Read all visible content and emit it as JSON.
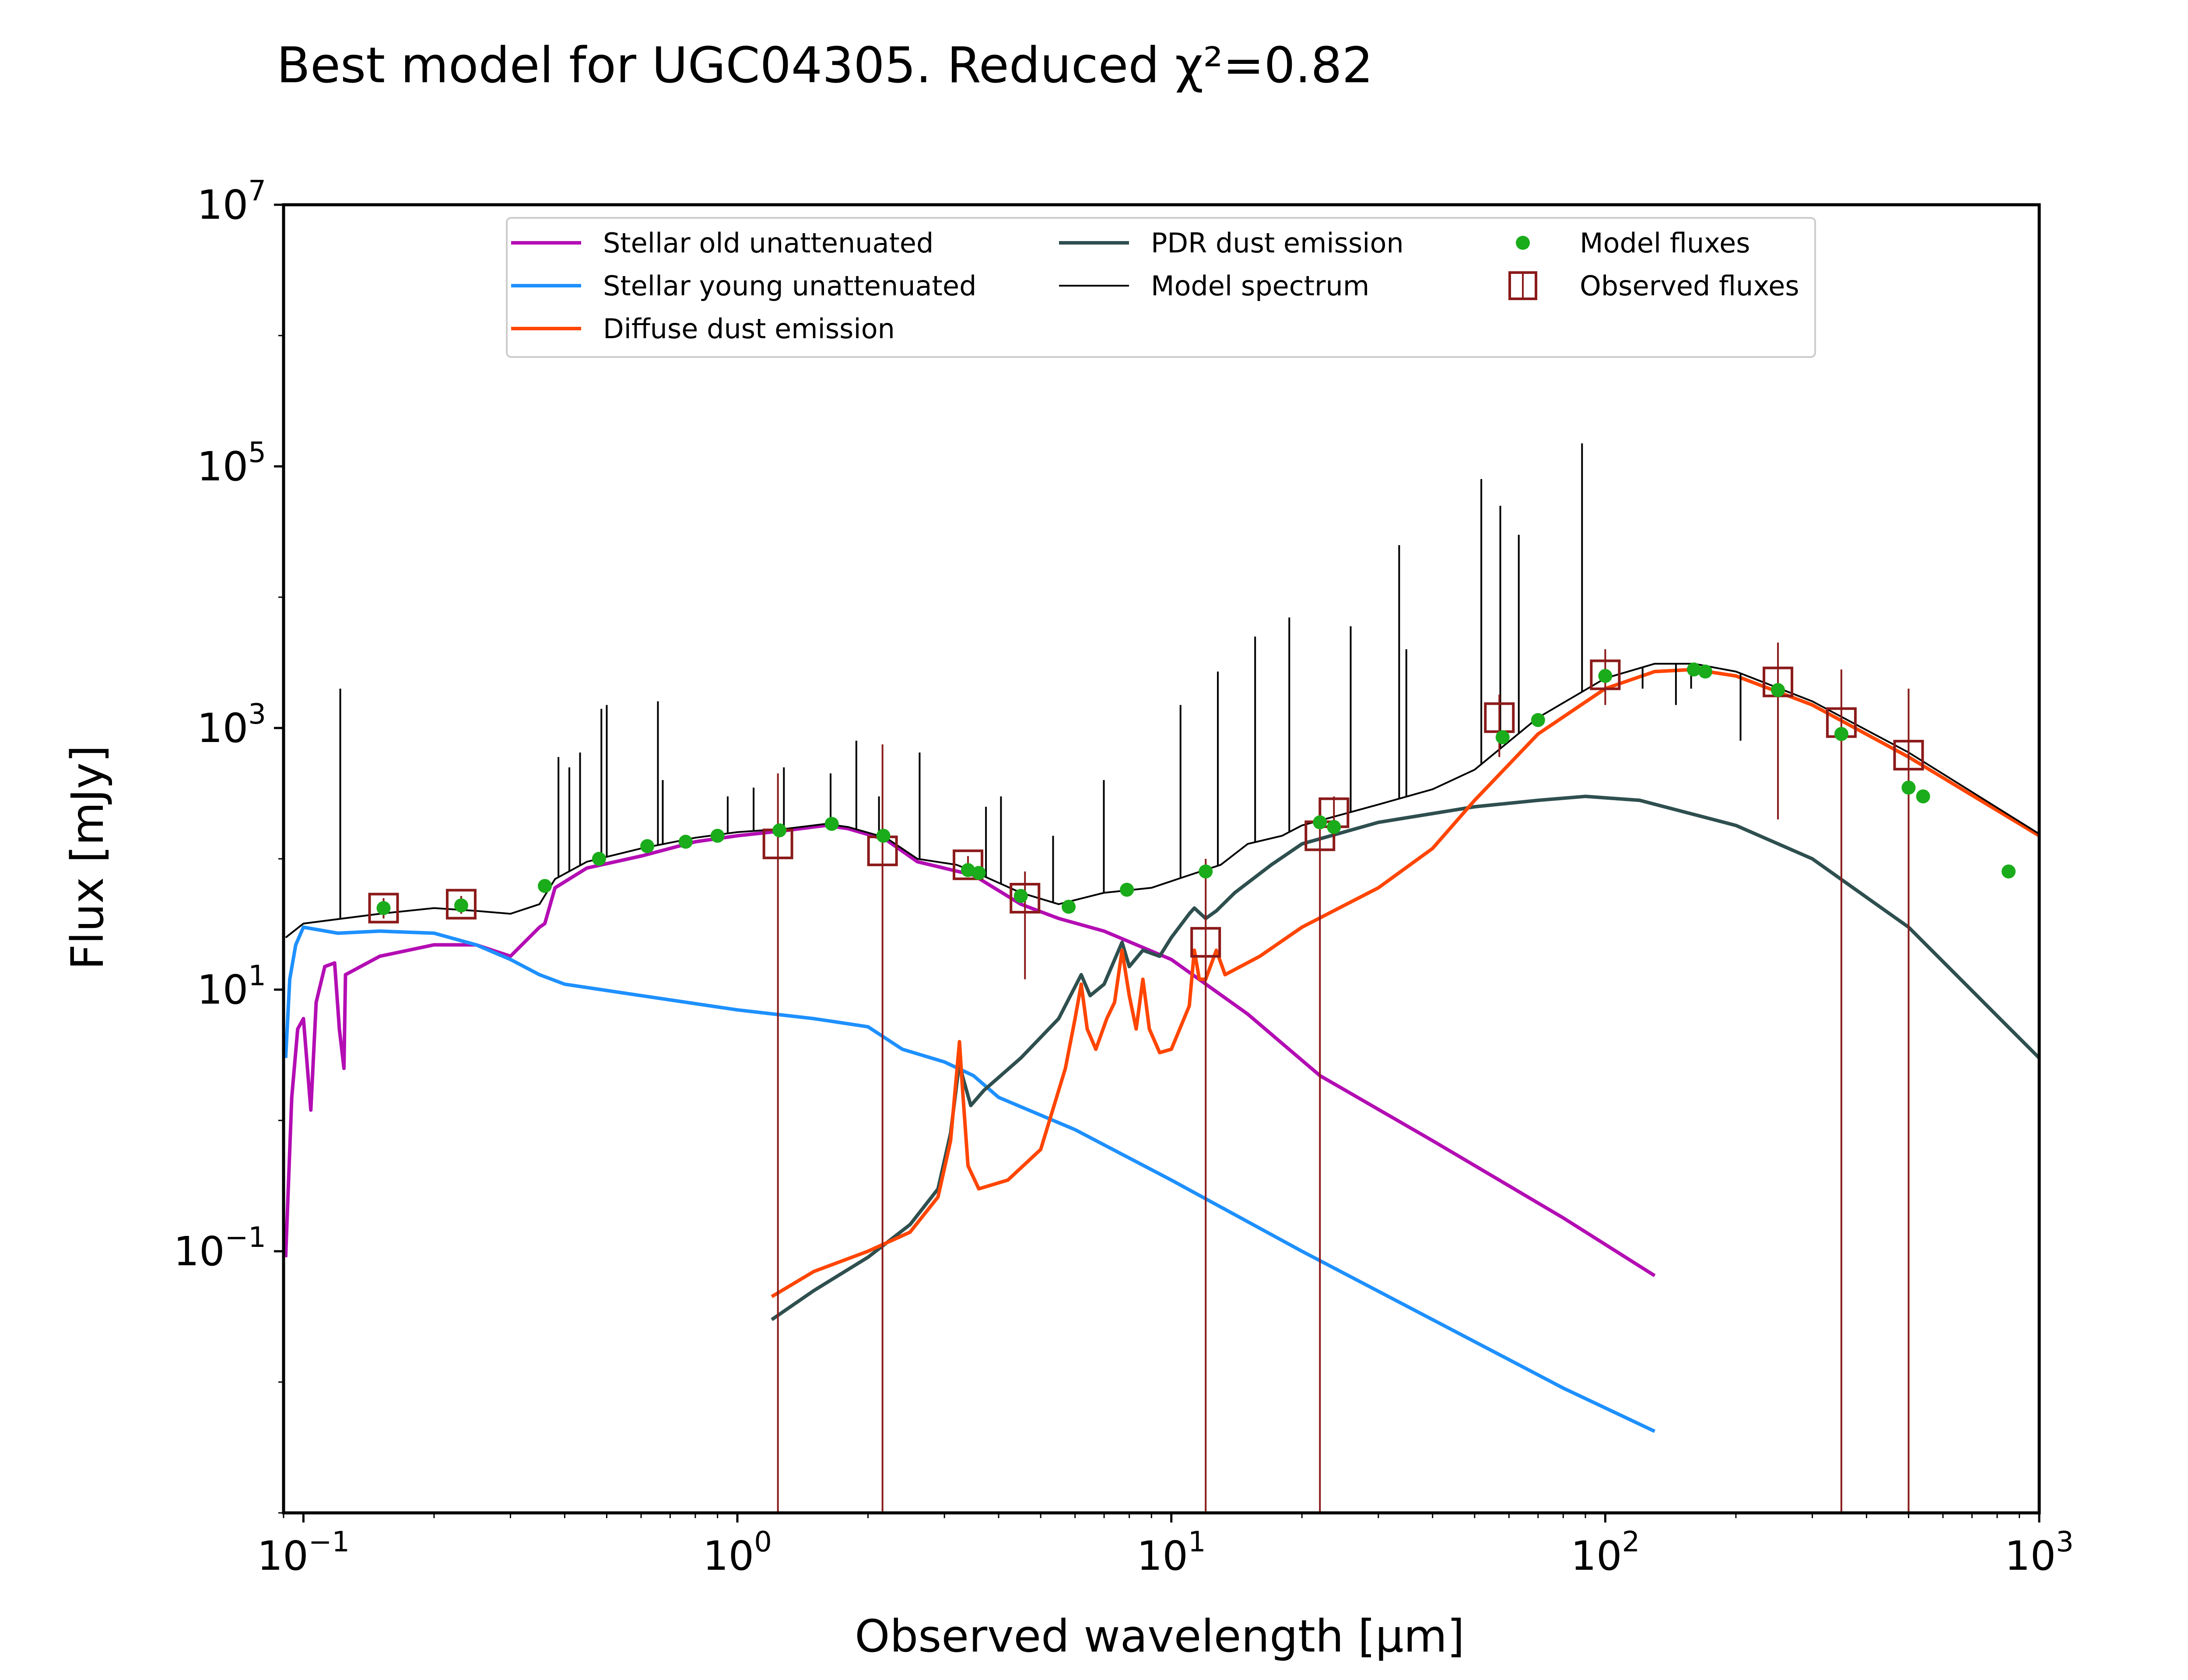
{
  "chart_data": {
    "type": "line",
    "title": "Best model for UGC04305. Reduced χ²=0.82",
    "xlabel": "Observed wavelength [μm]",
    "ylabel": "Flux [mJy]",
    "x_scale": "log",
    "y_scale": "log",
    "xlim": [
      0.09,
      1000
    ],
    "ylim": [
      0.001,
      10000000
    ],
    "grid": false,
    "legend_position": "top-center",
    "x_ticks": [
      {
        "value": 0.1,
        "base": "10",
        "exp": "−1"
      },
      {
        "value": 1,
        "base": "10",
        "exp": "0"
      },
      {
        "value": 10,
        "base": "10",
        "exp": "1"
      },
      {
        "value": 100,
        "base": "10",
        "exp": "2"
      },
      {
        "value": 1000,
        "base": "10",
        "exp": "3"
      }
    ],
    "y_ticks": [
      {
        "value": 0.1,
        "base": "10",
        "exp": "−1"
      },
      {
        "value": 10,
        "base": "10",
        "exp": "1"
      },
      {
        "value": 1000,
        "base": "10",
        "exp": "3"
      },
      {
        "value": 100000,
        "base": "10",
        "exp": "5"
      },
      {
        "value": 10000000,
        "base": "10",
        "exp": "7"
      }
    ],
    "series": [
      {
        "name": "Stellar old unattenuated",
        "color": "#b30db3",
        "points": [
          [
            0.091,
            0.09
          ],
          [
            0.094,
            1.5
          ],
          [
            0.097,
            5
          ],
          [
            0.1,
            6
          ],
          [
            0.104,
            1.2
          ],
          [
            0.107,
            8
          ],
          [
            0.112,
            15
          ],
          [
            0.118,
            16
          ],
          [
            0.121,
            5
          ],
          [
            0.124,
            2.5
          ],
          [
            0.125,
            13
          ],
          [
            0.15,
            18
          ],
          [
            0.2,
            22
          ],
          [
            0.25,
            22
          ],
          [
            0.3,
            18
          ],
          [
            0.35,
            30
          ],
          [
            0.36,
            32
          ],
          [
            0.38,
            60
          ],
          [
            0.45,
            85
          ],
          [
            0.6,
            105
          ],
          [
            0.8,
            135
          ],
          [
            1.0,
            150
          ],
          [
            1.3,
            165
          ],
          [
            1.6,
            180
          ],
          [
            1.8,
            170
          ],
          [
            2.2,
            140
          ],
          [
            2.6,
            95
          ],
          [
            3.5,
            75
          ],
          [
            4.5,
            45
          ],
          [
            5.5,
            35
          ],
          [
            7,
            28
          ],
          [
            10,
            17
          ],
          [
            15,
            6.5
          ],
          [
            22,
            2.2
          ],
          [
            40,
            0.7
          ],
          [
            80,
            0.18
          ],
          [
            130,
            0.065
          ]
        ]
      },
      {
        "name": "Stellar young unattenuated",
        "color": "#1e90ff",
        "points": [
          [
            0.091,
            3
          ],
          [
            0.093,
            12
          ],
          [
            0.096,
            22
          ],
          [
            0.1,
            30
          ],
          [
            0.12,
            27
          ],
          [
            0.15,
            28
          ],
          [
            0.2,
            27
          ],
          [
            0.25,
            22
          ],
          [
            0.3,
            17
          ],
          [
            0.35,
            13
          ],
          [
            0.4,
            11
          ],
          [
            0.6,
            9
          ],
          [
            1.0,
            7
          ],
          [
            1.5,
            6
          ],
          [
            2.0,
            5.2
          ],
          [
            2.4,
            3.5
          ],
          [
            3.0,
            2.8
          ],
          [
            3.5,
            2.2
          ],
          [
            4,
            1.5
          ],
          [
            6,
            0.85
          ],
          [
            10,
            0.35
          ],
          [
            20,
            0.1
          ],
          [
            40,
            0.03
          ],
          [
            80,
            0.009
          ],
          [
            130,
            0.0042
          ]
        ]
      },
      {
        "name": "Diffuse dust emission",
        "color": "#ff4500",
        "points": [
          [
            1.2,
            0.045
          ],
          [
            1.5,
            0.07
          ],
          [
            2,
            0.1
          ],
          [
            2.5,
            0.14
          ],
          [
            2.9,
            0.26
          ],
          [
            3.1,
            0.7
          ],
          [
            3.25,
            4
          ],
          [
            3.3,
            1.8
          ],
          [
            3.4,
            0.45
          ],
          [
            3.6,
            0.3
          ],
          [
            4.2,
            0.35
          ],
          [
            5.0,
            0.6
          ],
          [
            5.7,
            2.5
          ],
          [
            6.0,
            6
          ],
          [
            6.2,
            11
          ],
          [
            6.4,
            5
          ],
          [
            6.7,
            3.5
          ],
          [
            7.1,
            6
          ],
          [
            7.4,
            8
          ],
          [
            7.7,
            20
          ],
          [
            8.0,
            9
          ],
          [
            8.3,
            5
          ],
          [
            8.6,
            12
          ],
          [
            8.9,
            5
          ],
          [
            9.4,
            3.3
          ],
          [
            10,
            3.5
          ],
          [
            11,
            7.5
          ],
          [
            11.3,
            20
          ],
          [
            11.6,
            12
          ],
          [
            12,
            12
          ],
          [
            12.7,
            20
          ],
          [
            13.3,
            13
          ],
          [
            16,
            18
          ],
          [
            20,
            30
          ],
          [
            30,
            60
          ],
          [
            40,
            120
          ],
          [
            50,
            280
          ],
          [
            70,
            900
          ],
          [
            100,
            2000
          ],
          [
            130,
            2700
          ],
          [
            160,
            2800
          ],
          [
            200,
            2500
          ],
          [
            300,
            1500
          ],
          [
            500,
            600
          ],
          [
            1000,
            150
          ]
        ]
      },
      {
        "name": "PDR dust emission",
        "color": "#2f4f4f",
        "points": [
          [
            1.2,
            0.03
          ],
          [
            1.5,
            0.05
          ],
          [
            2,
            0.09
          ],
          [
            2.5,
            0.16
          ],
          [
            2.9,
            0.3
          ],
          [
            3.1,
            0.8
          ],
          [
            3.25,
            2.8
          ],
          [
            3.3,
            2.2
          ],
          [
            3.45,
            1.3
          ],
          [
            3.7,
            1.7
          ],
          [
            4.5,
            3
          ],
          [
            5.5,
            6
          ],
          [
            6.2,
            13
          ],
          [
            6.5,
            9
          ],
          [
            7.0,
            11
          ],
          [
            7.7,
            23
          ],
          [
            8.0,
            15
          ],
          [
            8.6,
            20
          ],
          [
            9.4,
            18
          ],
          [
            10,
            25
          ],
          [
            11,
            38
          ],
          [
            11.3,
            42
          ],
          [
            12,
            35
          ],
          [
            12.7,
            40
          ],
          [
            14,
            55
          ],
          [
            17,
            90
          ],
          [
            20,
            130
          ],
          [
            30,
            190
          ],
          [
            50,
            250
          ],
          [
            70,
            280
          ],
          [
            90,
            300
          ],
          [
            120,
            280
          ],
          [
            200,
            180
          ],
          [
            300,
            100
          ],
          [
            500,
            30
          ],
          [
            1000,
            3
          ]
        ]
      },
      {
        "name": "Model spectrum",
        "color": "#000000",
        "points": [
          [
            0.091,
            25
          ],
          [
            0.1,
            32
          ],
          [
            0.15,
            38
          ],
          [
            0.2,
            42
          ],
          [
            0.25,
            40
          ],
          [
            0.3,
            38
          ],
          [
            0.35,
            45
          ],
          [
            0.38,
            70
          ],
          [
            0.45,
            95
          ],
          [
            0.6,
            120
          ],
          [
            0.8,
            145
          ],
          [
            1.0,
            160
          ],
          [
            1.3,
            170
          ],
          [
            1.6,
            185
          ],
          [
            1.8,
            175
          ],
          [
            2.2,
            145
          ],
          [
            2.6,
            100
          ],
          [
            3.2,
            90
          ],
          [
            3.5,
            80
          ],
          [
            4.5,
            55
          ],
          [
            5.5,
            45
          ],
          [
            7,
            55
          ],
          [
            9,
            60
          ],
          [
            11,
            75
          ],
          [
            13,
            90
          ],
          [
            15,
            130
          ],
          [
            18,
            150
          ],
          [
            20,
            180
          ],
          [
            30,
            260
          ],
          [
            40,
            340
          ],
          [
            50,
            480
          ],
          [
            70,
            1200
          ],
          [
            100,
            2400
          ],
          [
            130,
            3100
          ],
          [
            160,
            3100
          ],
          [
            200,
            2700
          ],
          [
            300,
            1600
          ],
          [
            500,
            650
          ],
          [
            1000,
            155
          ]
        ]
      }
    ],
    "spectrum_lines": [
      [
        0.1216,
        2000
      ],
      [
        0.387,
        600
      ],
      [
        0.41,
        500
      ],
      [
        0.434,
        650
      ],
      [
        0.486,
        1400
      ],
      [
        0.5,
        1500
      ],
      [
        0.656,
        1600
      ],
      [
        0.673,
        400
      ],
      [
        0.95,
        300
      ],
      [
        1.09,
        350
      ],
      [
        1.28,
        500
      ],
      [
        1.64,
        450
      ],
      [
        1.88,
        800
      ],
      [
        2.12,
        300
      ],
      [
        2.63,
        650
      ],
      [
        3.74,
        250
      ],
      [
        4.05,
        300
      ],
      [
        5.34,
        150
      ],
      [
        6.99,
        400
      ],
      [
        10.5,
        1500
      ],
      [
        12.8,
        2700
      ],
      [
        15.6,
        5000
      ],
      [
        18.7,
        7000
      ],
      [
        25.9,
        6000
      ],
      [
        33.5,
        25000
      ],
      [
        34.8,
        4000
      ],
      [
        51.8,
        80000
      ],
      [
        57.3,
        50000
      ],
      [
        63.2,
        30000
      ],
      [
        88.4,
        150000
      ],
      [
        121.9,
        2000
      ],
      [
        145.5,
        1500
      ],
      [
        157.7,
        2000
      ],
      [
        205,
        800
      ]
    ],
    "model_fluxes": {
      "name": "Model fluxes",
      "color": "#1aac1a",
      "points": [
        [
          0.153,
          42
        ],
        [
          0.231,
          44
        ],
        [
          0.36,
          62
        ],
        [
          0.48,
          100
        ],
        [
          0.62,
          125
        ],
        [
          0.76,
          135
        ],
        [
          0.9,
          150
        ],
        [
          1.25,
          165
        ],
        [
          1.65,
          185
        ],
        [
          2.17,
          150
        ],
        [
          3.4,
          82
        ],
        [
          3.6,
          78
        ],
        [
          4.5,
          52
        ],
        [
          5.8,
          43
        ],
        [
          7.9,
          58
        ],
        [
          12,
          80
        ],
        [
          22,
          190
        ],
        [
          23.7,
          175
        ],
        [
          58,
          850
        ],
        [
          70,
          1150
        ],
        [
          100,
          2500
        ],
        [
          160,
          2800
        ],
        [
          170,
          2700
        ],
        [
          250,
          1950
        ],
        [
          350,
          900
        ],
        [
          500,
          350
        ],
        [
          540,
          300
        ],
        [
          850,
          80
        ]
      ]
    },
    "observed_fluxes": {
      "name": "Observed fluxes",
      "color": "#8b1a1a",
      "points": [
        {
          "x": 0.153,
          "y": 42,
          "lo": 35,
          "hi": 50
        },
        {
          "x": 0.231,
          "y": 45,
          "lo": 38,
          "hi": 52
        },
        {
          "x": 1.24,
          "y": 130,
          "lo": 0.001,
          "hi": 450
        },
        {
          "x": 2.16,
          "y": 115,
          "lo": 0.001,
          "hi": 750
        },
        {
          "x": 3.4,
          "y": 90,
          "lo": 75,
          "hi": 105
        },
        {
          "x": 4.6,
          "y": 50,
          "lo": 12,
          "hi": 80
        },
        {
          "x": 12,
          "y": 23,
          "lo": 0.001,
          "hi": 100
        },
        {
          "x": 22,
          "y": 150,
          "lo": 0.001,
          "hi": 250
        },
        {
          "x": 23.7,
          "y": 225,
          "lo": 150,
          "hi": 300
        },
        {
          "x": 57,
          "y": 1200,
          "lo": 600,
          "hi": 1800
        },
        {
          "x": 100,
          "y": 2550,
          "lo": 1500,
          "hi": 4000
        },
        {
          "x": 250,
          "y": 2250,
          "lo": 200,
          "hi": 4500
        },
        {
          "x": 350,
          "y": 1100,
          "lo": 0.001,
          "hi": 2800
        },
        {
          "x": 500,
          "y": 620,
          "lo": 0.001,
          "hi": 2000
        }
      ]
    },
    "legend": [
      {
        "label": "Stellar old unattenuated",
        "kind": "line",
        "color": "#b30db3",
        "col": 0,
        "row": 0
      },
      {
        "label": "Stellar young unattenuated",
        "kind": "line",
        "color": "#1e90ff",
        "col": 0,
        "row": 1
      },
      {
        "label": "Diffuse dust emission",
        "kind": "line",
        "color": "#ff4500",
        "col": 0,
        "row": 2
      },
      {
        "label": "PDR dust emission",
        "kind": "line",
        "color": "#2f4f4f",
        "col": 1,
        "row": 0
      },
      {
        "label": "Model spectrum",
        "kind": "thinline",
        "color": "#000000",
        "col": 1,
        "row": 1
      },
      {
        "label": "Model fluxes",
        "kind": "dot",
        "color": "#1aac1a",
        "col": 2,
        "row": 0
      },
      {
        "label": "Observed fluxes",
        "kind": "square",
        "color": "#8b1a1a",
        "col": 2,
        "row": 1
      }
    ]
  }
}
